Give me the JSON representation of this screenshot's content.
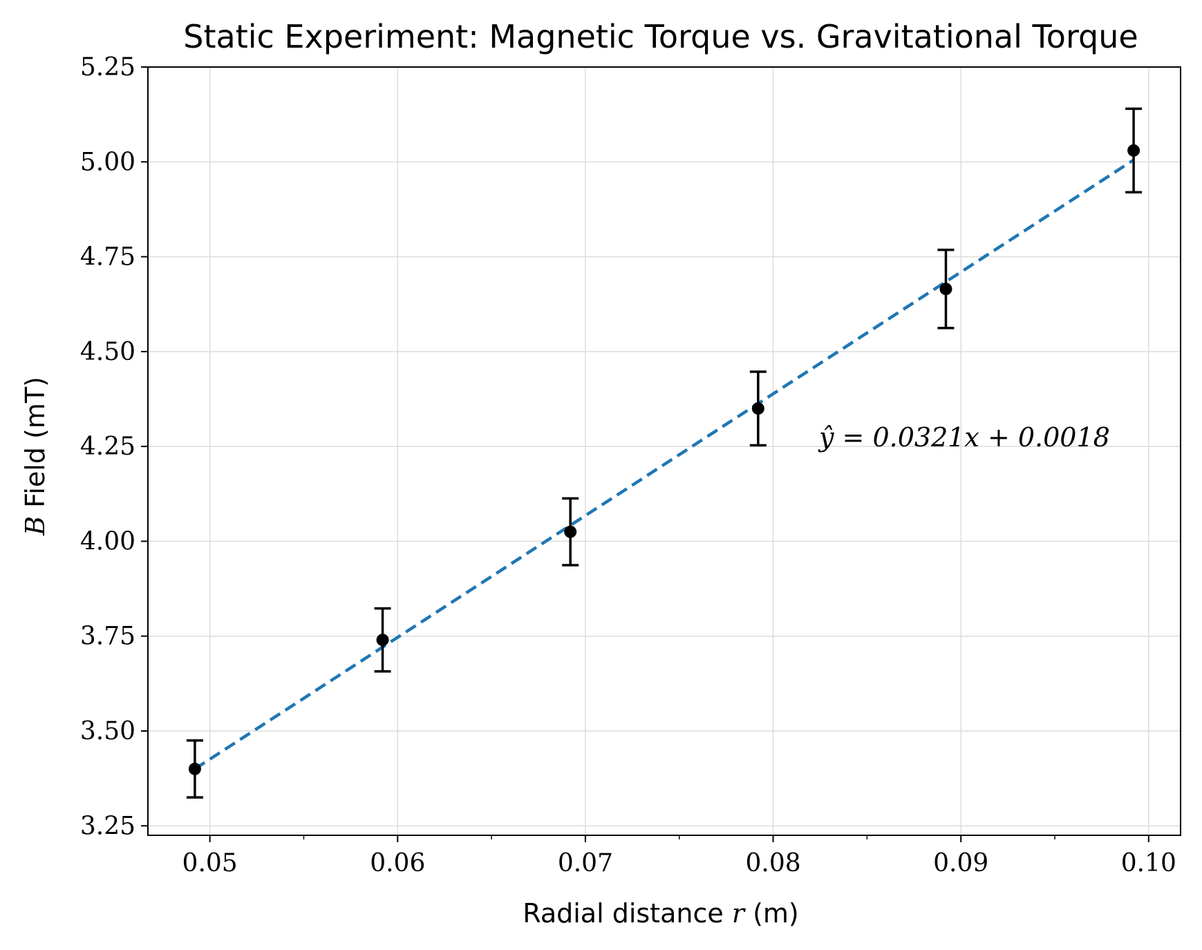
{
  "chart_data": {
    "type": "scatter",
    "title": "Static Experiment: Magnetic Torque vs. Gravitational Torque",
    "xlabel": {
      "prefix": "Radial distance ",
      "var": "r",
      "suffix": " (m)"
    },
    "ylabel": {
      "var": "B",
      "suffix": " Field (mT)"
    },
    "xlim": [
      0.0467,
      0.1017
    ],
    "ylim": [
      3.225,
      5.25
    ],
    "x_ticks": [
      0.05,
      0.06,
      0.07,
      0.08,
      0.09,
      0.1
    ],
    "x_tick_labels": [
      "0.05",
      "0.06",
      "0.07",
      "0.08",
      "0.09",
      "0.10"
    ],
    "x_minor_ticks": [
      0.055,
      0.065,
      0.075,
      0.085,
      0.095
    ],
    "y_ticks": [
      3.25,
      3.5,
      3.75,
      4.0,
      4.25,
      4.5,
      4.75,
      5.0,
      5.25
    ],
    "y_tick_labels": [
      "3.25",
      "3.50",
      "3.75",
      "4.00",
      "4.25",
      "4.50",
      "4.75",
      "5.00",
      "5.25"
    ],
    "grid": true,
    "points": {
      "x": [
        0.0492,
        0.0592,
        0.0692,
        0.0792,
        0.0892,
        0.0992
      ],
      "y": [
        3.4,
        3.74,
        4.025,
        4.35,
        4.665,
        5.03
      ],
      "yerr": [
        0.075,
        0.083,
        0.088,
        0.097,
        0.103,
        0.11
      ],
      "color": "#000000"
    },
    "fit": {
      "x": [
        0.0492,
        0.0992
      ],
      "y": [
        3.4,
        5.005
      ],
      "color": "#1f77b4",
      "style": "dashed"
    },
    "annotation": "ŷ = 0.0321x + 0.0018"
  }
}
